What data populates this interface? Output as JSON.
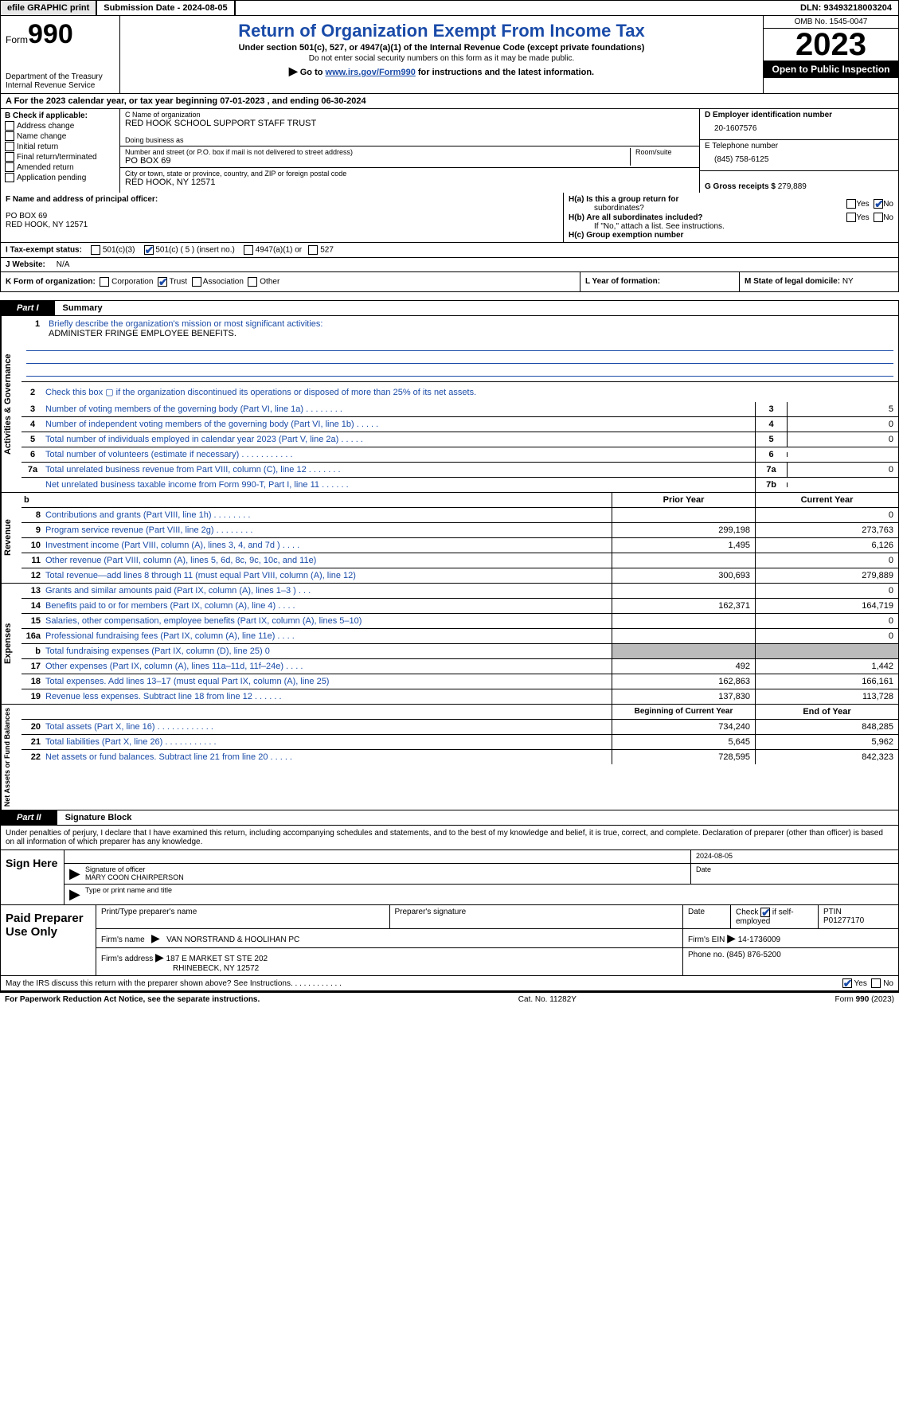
{
  "topbar": {
    "efile": "efile GRAPHIC print",
    "submission": "Submission Date - 2024-08-05",
    "dln": "DLN: 93493218003204"
  },
  "header": {
    "form": "Form",
    "form_num": "990",
    "dept": "Department of the Treasury",
    "irs": "Internal Revenue Service",
    "title": "Return of Organization Exempt From Income Tax",
    "sub1": "Under section 501(c), 527, or 4947(a)(1) of the Internal Revenue Code (except private foundations)",
    "sub2": "Do not enter social security numbers on this form as it may be made public.",
    "sub3_pre": "Go to ",
    "sub3_link": "www.irs.gov/Form990",
    "sub3_post": " for instructions and the latest information.",
    "omb": "OMB No. 1545-0047",
    "year": "2023",
    "inspect": "Open to Public Inspection"
  },
  "line_a": "A  For the 2023 calendar year, or tax year beginning 07-01-2023   , and ending 06-30-2024",
  "col_b": {
    "title": "B Check if applicable:",
    "opts": [
      "Address change",
      "Name change",
      "Initial return",
      "Final return/terminated",
      "Amended return",
      "Application pending"
    ]
  },
  "col_c": {
    "name_label": "C Name of organization",
    "name": "RED HOOK SCHOOL SUPPORT STAFF TRUST",
    "dba_label": "Doing business as",
    "dba": "",
    "street_label": "Number and street (or P.O. box if mail is not delivered to street address)",
    "room_label": "Room/suite",
    "street": "PO BOX 69",
    "city_label": "City or town, state or province, country, and ZIP or foreign postal code",
    "city": "RED HOOK, NY  12571"
  },
  "col_d": {
    "ein_label": "D Employer identification number",
    "ein": "20-1607576",
    "tel_label": "E Telephone number",
    "tel": "(845) 758-6125",
    "gross_label": "G Gross receipts $ ",
    "gross": "279,889"
  },
  "section_f": {
    "label": "F  Name and address of principal officer:",
    "addr1": "PO BOX 69",
    "addr2": "RED HOOK, NY  12571"
  },
  "section_h": {
    "ha": "H(a)  Is this a group return for",
    "ha2": "subordinates?",
    "hb": "H(b)  Are all subordinates included?",
    "hb_note": "If \"No,\" attach a list. See instructions.",
    "hc": "H(c)  Group exemption number",
    "yes": "Yes",
    "no": "No"
  },
  "row_i": {
    "label": "I    Tax-exempt status:",
    "o1": "501(c)(3)",
    "o2": "501(c) ( 5 ) (insert no.)",
    "o3": "4947(a)(1) or",
    "o4": "527"
  },
  "row_j": {
    "label": "J   Website:",
    "val": "N/A"
  },
  "row_k": {
    "label": "K Form of organization:",
    "o1": "Corporation",
    "o2": "Trust",
    "o3": "Association",
    "o4": "Other"
  },
  "row_l": {
    "label": "L Year of formation:",
    "val": ""
  },
  "row_m": {
    "label": "M State of legal domicile: ",
    "val": "NY"
  },
  "part1": {
    "tab": "Part I",
    "title": "Summary"
  },
  "mission": {
    "label": "Briefly describe the organization's mission or most significant activities:",
    "text": "ADMINISTER FRINGE EMPLOYEE BENEFITS."
  },
  "vlabels": {
    "gov": "Activities & Governance",
    "rev": "Revenue",
    "exp": "Expenses",
    "net": "Net Assets or Fund Balances"
  },
  "gov_rows": [
    {
      "n": "2",
      "d": "Check this box ▢ if the organization discontinued its operations or disposed of more than 25% of its net assets.",
      "box": "",
      "val": ""
    },
    {
      "n": "3",
      "d": "Number of voting members of the governing body (Part VI, line 1a)   .   .   .   .   .   .   .   .",
      "box": "3",
      "val": "5"
    },
    {
      "n": "4",
      "d": "Number of independent voting members of the governing body (Part VI, line 1b)   .   .   .   .   .",
      "box": "4",
      "val": "0"
    },
    {
      "n": "5",
      "d": "Total number of individuals employed in calendar year 2023 (Part V, line 2a)   .   .   .   .   .",
      "box": "5",
      "val": "0"
    },
    {
      "n": "6",
      "d": "Total number of volunteers (estimate if necessary)   .   .   .   .   .   .   .   .   .   .   .",
      "box": "6",
      "val": ""
    },
    {
      "n": "7a",
      "d": "Total unrelated business revenue from Part VIII, column (C), line 12   .   .   .   .   .   .   .",
      "box": "7a",
      "val": "0"
    },
    {
      "n": "",
      "d": "Net unrelated business taxable income from Form 990-T, Part I, line 11   .   .   .   .   .   .",
      "box": "7b",
      "val": ""
    }
  ],
  "fin_header": {
    "prior": "Prior Year",
    "current": "Current Year"
  },
  "rev_rows": [
    {
      "n": "8",
      "d": "Contributions and grants (Part VIII, line 1h)   .   .   .   .   .   .   .   .",
      "c1": "",
      "c2": "0"
    },
    {
      "n": "9",
      "d": "Program service revenue (Part VIII, line 2g)   .   .   .   .   .   .   .   .",
      "c1": "299,198",
      "c2": "273,763"
    },
    {
      "n": "10",
      "d": "Investment income (Part VIII, column (A), lines 3, 4, and 7d )   .   .   .   .",
      "c1": "1,495",
      "c2": "6,126"
    },
    {
      "n": "11",
      "d": "Other revenue (Part VIII, column (A), lines 5, 6d, 8c, 9c, 10c, and 11e)",
      "c1": "",
      "c2": "0"
    },
    {
      "n": "12",
      "d": "Total revenue—add lines 8 through 11 (must equal Part VIII, column (A), line 12)",
      "c1": "300,693",
      "c2": "279,889"
    }
  ],
  "exp_rows": [
    {
      "n": "13",
      "d": "Grants and similar amounts paid (Part IX, column (A), lines 1–3 )   .   .   .",
      "c1": "",
      "c2": "0"
    },
    {
      "n": "14",
      "d": "Benefits paid to or for members (Part IX, column (A), line 4)   .   .   .   .",
      "c1": "162,371",
      "c2": "164,719"
    },
    {
      "n": "15",
      "d": "Salaries, other compensation, employee benefits (Part IX, column (A), lines 5–10)",
      "c1": "",
      "c2": "0"
    },
    {
      "n": "16a",
      "d": "Professional fundraising fees (Part IX, column (A), line 11e)   .   .   .   .",
      "c1": "",
      "c2": "0"
    },
    {
      "n": "b",
      "d": "Total fundraising expenses (Part IX, column (D), line 25) 0",
      "c1": "shade",
      "c2": "shade"
    },
    {
      "n": "17",
      "d": "Other expenses (Part IX, column (A), lines 11a–11d, 11f–24e)   .   .   .   .",
      "c1": "492",
      "c2": "1,442"
    },
    {
      "n": "18",
      "d": "Total expenses. Add lines 13–17 (must equal Part IX, column (A), line 25)",
      "c1": "162,863",
      "c2": "166,161"
    },
    {
      "n": "19",
      "d": "Revenue less expenses. Subtract line 18 from line 12   .   .   .   .   .   .",
      "c1": "137,830",
      "c2": "113,728"
    }
  ],
  "net_header": {
    "begin": "Beginning of Current Year",
    "end": "End of Year"
  },
  "net_rows": [
    {
      "n": "20",
      "d": "Total assets (Part X, line 16)   .   .   .   .   .   .   .   .   .   .   .   .",
      "c1": "734,240",
      "c2": "848,285"
    },
    {
      "n": "21",
      "d": "Total liabilities (Part X, line 26)   .   .   .   .   .   .   .   .   .   .   .",
      "c1": "5,645",
      "c2": "5,962"
    },
    {
      "n": "22",
      "d": "Net assets or fund balances. Subtract line 21 from line 20   .   .   .   .   .",
      "c1": "728,595",
      "c2": "842,323"
    }
  ],
  "part2": {
    "tab": "Part II",
    "title": "Signature Block"
  },
  "sig_text": "Under penalties of perjury, I declare that I have examined this return, including accompanying schedules and statements, and to the best of my knowledge and belief, it is true, correct, and complete. Declaration of preparer (other than officer) is based on all information of which preparer has any knowledge.",
  "sign": {
    "here": "Sign Here",
    "date": "2024-08-05",
    "sig_label": "Signature of officer",
    "name": "MARY COON CHAIRPERSON",
    "type_label": "Type or print name and title",
    "date_label": "Date"
  },
  "paid": {
    "title": "Paid Preparer Use Only",
    "h1": "Print/Type preparer's name",
    "h2": "Preparer's signature",
    "h3": "Date",
    "h4_pre": "Check",
    "h4_post": "if self-employed",
    "h5": "PTIN",
    "ptin": "P01277170",
    "firm_label": "Firm's name",
    "firm": "VAN NORSTRAND & HOOLIHAN PC",
    "ein_label": "Firm's EIN",
    "ein": "14-1736009",
    "addr_label": "Firm's address",
    "addr1": "187 E MARKET ST STE 202",
    "addr2": "RHINEBECK, NY  12572",
    "phone_label": "Phone no.",
    "phone": "(845) 876-5200"
  },
  "discuss": {
    "text": "May the IRS discuss this return with the preparer shown above? See Instructions.   .   .   .   .   .   .   .   .   .   .   .",
    "yes": "Yes",
    "no": "No"
  },
  "footer": {
    "left": "For Paperwork Reduction Act Notice, see the separate instructions.",
    "center": "Cat. No. 11282Y",
    "right_pre": "Form ",
    "right_form": "990",
    "right_post": " (2023)"
  }
}
